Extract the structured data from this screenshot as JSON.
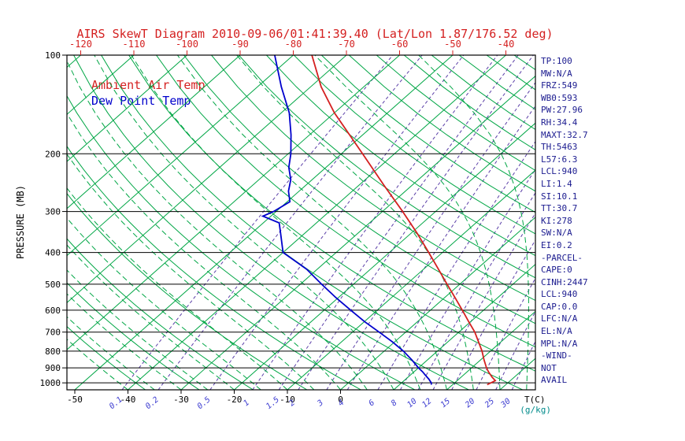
{
  "chart_data": {
    "type": "skewt",
    "title": "AIRS SkewT Diagram 2010-09-06/01:41:39.40 (Lat/Lon 1.87/176.52 deg)",
    "y_axis_label": "PRESSURE (MB)",
    "x_axis_label": "T(C)",
    "mixing_axis_label": "(g/kg)",
    "pressure_range": [
      100,
      1050
    ],
    "pressure_ticks": [
      100,
      200,
      300,
      400,
      500,
      600,
      700,
      800,
      900,
      1000
    ],
    "top_temp_ticks": [
      -120,
      -110,
      -100,
      -90,
      -80,
      -70,
      -60,
      -50,
      -40
    ],
    "bottom_temp_ticks": [
      -50,
      -40,
      -30,
      -20,
      -10,
      0
    ],
    "isotherms": {
      "min": -120,
      "max": 40,
      "step": 10
    },
    "dry_adiabats": {
      "min": -40,
      "max": 200,
      "step": 10
    },
    "moist_adiabats": {
      "min": -40,
      "max": 40,
      "step": 5
    },
    "mixing_ratio_values": [
      0.1,
      0.2,
      0.5,
      1,
      1.5,
      2,
      3,
      4,
      6,
      8,
      10,
      12,
      15,
      20,
      25,
      30
    ],
    "series": [
      {
        "name": "Ambient Air Temp",
        "color": "#d42020",
        "points": [
          [
            1013,
            26.5
          ],
          [
            1000,
            26.8
          ],
          [
            985,
            27.2
          ],
          [
            960,
            25.8
          ],
          [
            925,
            24.0
          ],
          [
            900,
            22.8
          ],
          [
            850,
            20.6
          ],
          [
            800,
            18.4
          ],
          [
            750,
            15.8
          ],
          [
            700,
            13.0
          ],
          [
            650,
            9.6
          ],
          [
            600,
            6.0
          ],
          [
            550,
            2.0
          ],
          [
            500,
            -2.4
          ],
          [
            450,
            -7.2
          ],
          [
            400,
            -12.6
          ],
          [
            350,
            -18.8
          ],
          [
            300,
            -26.2
          ],
          [
            250,
            -35.2
          ],
          [
            200,
            -46.0
          ],
          [
            175,
            -52.5
          ],
          [
            150,
            -60.0
          ],
          [
            125,
            -68.0
          ],
          [
            100,
            -76.5
          ]
        ]
      },
      {
        "name": "Dew Point Temp",
        "color": "#0000cc",
        "points": [
          [
            1013,
            16.0
          ],
          [
            1000,
            15.6
          ],
          [
            975,
            14.4
          ],
          [
            950,
            13.0
          ],
          [
            925,
            11.6
          ],
          [
            900,
            10.0
          ],
          [
            850,
            7.0
          ],
          [
            800,
            3.6
          ],
          [
            750,
            -0.4
          ],
          [
            700,
            -5.0
          ],
          [
            650,
            -10.0
          ],
          [
            600,
            -15.0
          ],
          [
            550,
            -20.4
          ],
          [
            500,
            -26.0
          ],
          [
            450,
            -32.0
          ],
          [
            400,
            -40.0
          ],
          [
            350,
            -44.5
          ],
          [
            325,
            -47.0
          ],
          [
            310,
            -51.5
          ],
          [
            300,
            -50.5
          ],
          [
            280,
            -49.5
          ],
          [
            260,
            -52.0
          ],
          [
            240,
            -54.0
          ],
          [
            220,
            -57.0
          ],
          [
            200,
            -59.5
          ],
          [
            175,
            -63.5
          ],
          [
            150,
            -68.5
          ],
          [
            125,
            -75.5
          ],
          [
            100,
            -83.5
          ]
        ]
      }
    ]
  },
  "stats_panel": {
    "lines": [
      "TP:100",
      "MW:N/A",
      "FRZ:549",
      "WB0:593",
      "PW:27.96",
      "RH:34.4",
      "MAXT:32.7",
      "TH:5463",
      "L57:6.3",
      "LCL:940",
      "LI:1.4",
      "SI:10.1",
      "TT:30.7",
      "KI:278",
      "SW:N/A",
      "EI:0.2",
      "-PARCEL-",
      "CAPE:0",
      "CINH:2447",
      "LCL:940",
      "CAP:0.0",
      "LFC:N/A",
      "EL:N/A",
      "MPL:N/A",
      "-WIND-",
      "NOT",
      "AVAIL"
    ]
  },
  "colors": {
    "title": "#d42020",
    "top_ticks": "#d42020",
    "isotherm": "#00a645",
    "dry_adiabat": "#00a645",
    "moist_adiabat": "#00a645",
    "mixing_ratio": "#5b3fa8",
    "mixing_label": "#3b3bd0",
    "isobar": "#000000",
    "frame": "#000000",
    "pressure_label": "#000000",
    "bottom_temp_label": "#000000",
    "gkg_label": "#008b8b",
    "stats_text": "#1b1b8f"
  }
}
